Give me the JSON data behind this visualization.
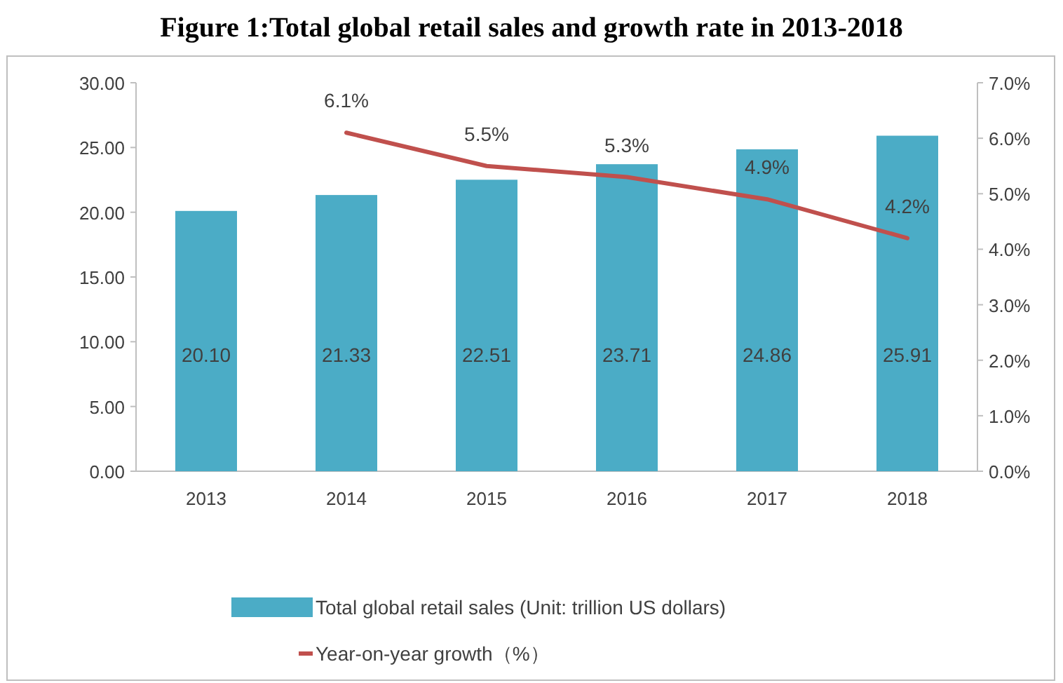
{
  "chart_data": {
    "type": "bar",
    "title": "Figure 1:Total global retail sales and growth rate in 2013-2018",
    "categories": [
      "2013",
      "2014",
      "2015",
      "2016",
      "2017",
      "2018"
    ],
    "series": [
      {
        "name": "Total global retail sales (Unit: trillion US dollars)",
        "color": "#4bacc6",
        "values": [
          20.1,
          21.33,
          22.51,
          23.71,
          24.86,
          25.91
        ],
        "value_labels": [
          "20.10",
          "21.33",
          "22.51",
          "23.71",
          "24.86",
          "25.91"
        ]
      },
      {
        "name": "Year-on-year growth（%）",
        "type": "line",
        "axis": "y2",
        "color": "#c0504d",
        "values": [
          null,
          6.1,
          5.5,
          5.3,
          4.9,
          4.2
        ],
        "value_labels": [
          null,
          "6.1%",
          "5.5%",
          "5.3%",
          "4.9%",
          "4.2%"
        ]
      }
    ],
    "ylim": [
      0,
      30
    ],
    "yticks": [
      {
        "value": 0,
        "label": "0.00"
      },
      {
        "value": 5,
        "label": "5.00"
      },
      {
        "value": 10,
        "label": "10.00"
      },
      {
        "value": 15,
        "label": "15.00"
      },
      {
        "value": 20,
        "label": "20.00"
      },
      {
        "value": 25,
        "label": "25.00"
      },
      {
        "value": 30,
        "label": "30.00"
      }
    ],
    "y2lim": [
      0,
      7
    ],
    "y2ticks": [
      {
        "value": 0,
        "label": "0.0%"
      },
      {
        "value": 1,
        "label": "1.0%"
      },
      {
        "value": 2,
        "label": "2.0%"
      },
      {
        "value": 3,
        "label": "3.0%"
      },
      {
        "value": 4,
        "label": "4.0%"
      },
      {
        "value": 5,
        "label": "5.0%"
      },
      {
        "value": 6,
        "label": "6.0%"
      },
      {
        "value": 7,
        "label": "7.0%"
      }
    ],
    "legend": "bottom"
  }
}
